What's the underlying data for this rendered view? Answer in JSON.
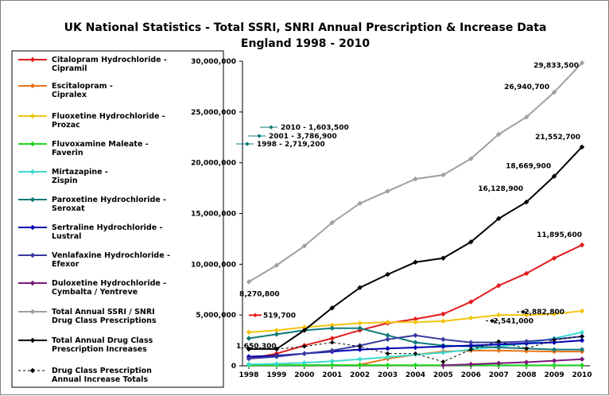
{
  "chart_data": {
    "type": "line",
    "title": "UK National Statistics - Total SSRI, SNRI Annual Prescription & Increase Data",
    "subtitle": "England 1998 - 2010",
    "x": [
      "1998",
      "1999",
      "2000",
      "2001",
      "2002",
      "2003",
      "2004",
      "2005",
      "2006",
      "2007",
      "2008",
      "2009",
      "2010"
    ],
    "ylim": [
      0,
      30000000
    ],
    "yticks": [
      "0",
      "5,000,000",
      "10,000,000",
      "15,000,000",
      "20,000,000",
      "25,000,000",
      "30,000,000"
    ],
    "grid": false,
    "legend_position": "left",
    "series": [
      {
        "name": "Citalopram Hydrochloride - Cipramil",
        "color": "#e31a1c",
        "values": [
          700000,
          1200000,
          2000000,
          2700000,
          3500000,
          4200000,
          4600000,
          5100000,
          6300000,
          7900000,
          9100000,
          10600000,
          11895600
        ]
      },
      {
        "name": "Escitalopram - Cipralex",
        "color": "#e8731a",
        "values": [
          null,
          null,
          null,
          null,
          100000,
          700000,
          1100000,
          1400000,
          1500000,
          1500000,
          1450000,
          1400000,
          1400000
        ]
      },
      {
        "name": "Fluoxetine Hydrochloride - Prozac",
        "color": "#f2c40f",
        "values": [
          3300000,
          3500000,
          3800000,
          4000000,
          4200000,
          4300000,
          4300000,
          4400000,
          4700000,
          5000000,
          5000000,
          5100000,
          5400000
        ]
      },
      {
        "name": "Fluvoxamine Maleate - Faverin",
        "color": "#1fd61f",
        "values": [
          70000,
          70000,
          70000,
          70000,
          65000,
          60000,
          60000,
          55000,
          55000,
          50000,
          50000,
          50000,
          45000
        ]
      },
      {
        "name": "Mirtazapine - Zispin",
        "color": "#3fd9cf",
        "values": [
          150000,
          200000,
          300000,
          450000,
          650000,
          850000,
          1100000,
          1300000,
          1600000,
          1900000,
          2200000,
          2700000,
          3300000
        ]
      },
      {
        "name": "Paroxetine Hydrochloride - Seroxat",
        "color": "#117a7a",
        "values": [
          2700000,
          3100000,
          3500000,
          3700000,
          3700000,
          3000000,
          2300000,
          2000000,
          1900000,
          1800000,
          1700000,
          1600000,
          1600000
        ]
      },
      {
        "name": "Sertraline Hydrochloride - Lustral",
        "color": "#0000b0",
        "values": [
          900000,
          1000000,
          1200000,
          1400000,
          1600000,
          1700000,
          1800000,
          1900000,
          2000000,
          2100000,
          2200000,
          2300000,
          2500000
        ]
      },
      {
        "name": "Venlafaxine Hydrochloride - Efexor",
        "color": "#3a3aa0",
        "values": [
          700000,
          900000,
          1200000,
          1500000,
          2000000,
          2600000,
          3000000,
          2600000,
          2300000,
          2300000,
          2400000,
          2600000,
          2900000
        ]
      },
      {
        "name": "Duloxetine Hydrochloride - Cymbalta / Yentreve",
        "color": "#7a1a7a",
        "values": [
          null,
          null,
          null,
          null,
          null,
          null,
          null,
          50000,
          150000,
          250000,
          350000,
          500000,
          650000
        ]
      },
      {
        "name": "Total Annual SSRI / SNRI Drug Class Prescriptions",
        "color": "#a0a0a0",
        "values": [
          8270800,
          9900000,
          11800000,
          14100000,
          16000000,
          17200000,
          18400000,
          18800000,
          20400000,
          22800000,
          24500000,
          26940700,
          29833500
        ]
      },
      {
        "name": "Total Annual Drug Class Prescription Increases",
        "color": "#000000",
        "values": [
          1650300,
          1650300,
          3500000,
          5700000,
          7700000,
          9000000,
          10200000,
          10600000,
          12200000,
          14500000,
          16128900,
          18669900,
          21552700
        ]
      },
      {
        "name": "Drug Class Prescription Annual Increase Totals",
        "color": "#000000",
        "dashed": true,
        "values": [
          null,
          1650300,
          1900000,
          2300000,
          1900000,
          1200000,
          1200000,
          400000,
          1600000,
          2400000,
          1700000,
          2541000,
          2882800
        ]
      }
    ],
    "annotations": [
      {
        "text": "29,833,500",
        "x": "2010",
        "y": 29833500
      },
      {
        "text": "26,940,700",
        "x": "2009",
        "y": 26940700
      },
      {
        "text": "21,552,700",
        "x": "2010",
        "y": 21552700
      },
      {
        "text": "2,882,800",
        "x": "2010",
        "y": 2882800
      },
      {
        "text": "18,669,900",
        "x": "2009",
        "y": 18669900
      },
      {
        "text": "2,541,000",
        "x": "2009",
        "y": 2541000
      },
      {
        "text": "16,128,900",
        "x": "2008",
        "y": 16128900
      },
      {
        "text": "11,895,600",
        "x": "2010",
        "y": 11895600
      },
      {
        "text": "8,270,800",
        "x": "1998",
        "y": 8270800
      },
      {
        "text": "519,700",
        "x": "1998",
        "y": 519700
      },
      {
        "text": "1,650,300",
        "x": "1998",
        "y": 1650300
      },
      {
        "text": "2010 - 1,603,500",
        "x": "",
        "y": null
      },
      {
        "text": "2001 - 3,786,900",
        "x": "",
        "y": null
      },
      {
        "text": "1998 - 2,719,200",
        "x": "",
        "y": null
      }
    ]
  }
}
